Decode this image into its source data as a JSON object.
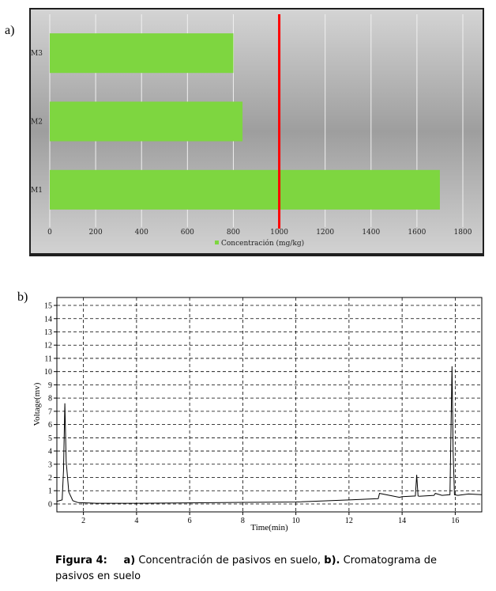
{
  "panel_labels": {
    "a": "a)",
    "b": "b)"
  },
  "caption": {
    "figure": "Figura 4:",
    "part_a_label": "a)",
    "part_a_text": " Concentración de pasivos en suelo, ",
    "part_b_label": "b).",
    "part_b_text": " Cromatograma de pasivos en suelo"
  },
  "chart_data": [
    {
      "type": "bar",
      "orientation": "horizontal",
      "categories": [
        "M3",
        "M2",
        "M1"
      ],
      "series": [
        {
          "name": "Concentración (mg/kg)",
          "values": [
            800,
            840,
            1700
          ],
          "color": "#7ed640"
        }
      ],
      "xlim": [
        0,
        1800
      ],
      "xticks": [
        "0",
        "200",
        "400",
        "600",
        "800",
        "1000",
        "1200",
        "1400",
        "1600",
        "1800"
      ],
      "reference_line": {
        "x": 1000,
        "color": "#ff0000"
      },
      "grid": "vertical",
      "legend": "bottom",
      "background": "gray-gradient"
    },
    {
      "type": "line",
      "xlabel": "Time(min)",
      "ylabel": "Voltage(mv)",
      "xlim": [
        1,
        17
      ],
      "ylim": [
        -0.6,
        15.6
      ],
      "xticks": [
        "2",
        "4",
        "6",
        "8",
        "10",
        "12",
        "14",
        "16"
      ],
      "yticks": [
        "0",
        "1",
        "2",
        "3",
        "4",
        "5",
        "6",
        "7",
        "8",
        "9",
        "10",
        "11",
        "12",
        "13",
        "14",
        "15"
      ],
      "grid": "dashed",
      "x": [
        1.0,
        1.2,
        1.25,
        1.3,
        1.35,
        1.45,
        1.6,
        1.8,
        2.5,
        4,
        6,
        8,
        10,
        12,
        13.1,
        13.15,
        13.9,
        14.0,
        14.5,
        14.55,
        14.6,
        14.65,
        15.2,
        15.25,
        15.5,
        15.8,
        15.88,
        15.92,
        15.97,
        16.1,
        16.5,
        17.0
      ],
      "y": [
        0.2,
        0.3,
        2.5,
        7.6,
        3.2,
        0.9,
        0.25,
        0.1,
        0.05,
        0.05,
        0.08,
        0.12,
        0.15,
        0.3,
        0.4,
        0.8,
        0.5,
        0.55,
        0.6,
        2.2,
        0.6,
        0.58,
        0.65,
        0.8,
        0.65,
        0.7,
        10.4,
        4.0,
        0.7,
        0.65,
        0.75,
        0.7
      ],
      "color": "#000000"
    }
  ]
}
